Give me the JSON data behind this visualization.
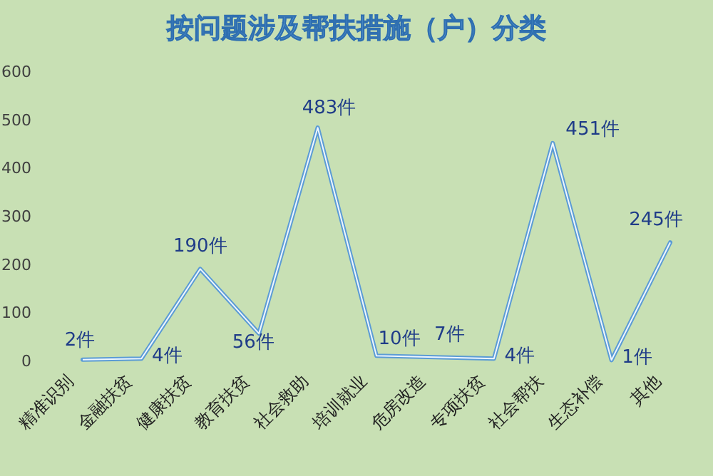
{
  "chart_data": {
    "type": "line",
    "title": "按问题涉及帮扶措施（户）分类",
    "categories": [
      "精准识别",
      "金融扶贫",
      "健康扶贫",
      "教育扶贫",
      "社会救助",
      "培训就业",
      "危房改造",
      "专项扶贫",
      "社会帮扶",
      "生态补偿",
      "其他"
    ],
    "series": [
      {
        "color": "#5b9bd5",
        "values": [
          2,
          4,
          190,
          56,
          483,
          10,
          7,
          4,
          451,
          1,
          245
        ],
        "value_labels": [
          "2件",
          "4件",
          "190件",
          "56件",
          "483件",
          "10件",
          "7件",
          "4件",
          "451件",
          "1件",
          "245件"
        ]
      }
    ],
    "ylim": [
      0,
      600
    ],
    "yticks": [
      0,
      100,
      200,
      300,
      400,
      500,
      600
    ],
    "grid": false,
    "marker": "none",
    "line_style": "solid"
  }
}
